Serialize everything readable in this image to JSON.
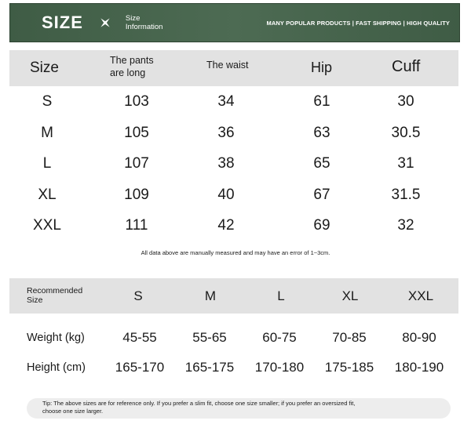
{
  "header": {
    "title": "SIZE",
    "info_line1": "Size",
    "info_line2": "Information",
    "tagline": "MANY POPULAR PRODUCTS | FAST SHIPPING | HIGH QUALITY",
    "icon": "sparkle-icon"
  },
  "measure_table": {
    "headers": {
      "size": "Size",
      "pants_line1": "The pants",
      "pants_line2": "are long",
      "waist": "The waist",
      "hip": "Hip",
      "cuff": "Cuff"
    },
    "rows": [
      [
        "S",
        "103",
        "34",
        "61",
        "30"
      ],
      [
        "M",
        "105",
        "36",
        "63",
        "30.5"
      ],
      [
        "L",
        "107",
        "38",
        "65",
        "31"
      ],
      [
        "XL",
        "109",
        "40",
        "67",
        "31.5"
      ],
      [
        "XXL",
        "111",
        "42",
        "69",
        "32"
      ]
    ]
  },
  "note": "All data above are manually measured and may have an error of 1~3cm.",
  "recommend_table": {
    "header_line1": "Recommended",
    "header_line2": "Size",
    "sizes": [
      "S",
      "M",
      "L",
      "XL",
      "XXL"
    ],
    "weight_label": "Weight (kg)",
    "weight": [
      "45-55",
      "55-65",
      "60-75",
      "70-85",
      "80-90"
    ],
    "height_label": "Height (cm)",
    "height": [
      "165-170",
      "165-175",
      "170-180",
      "175-185",
      "180-190"
    ]
  },
  "tip_line1": "Tip: The above sizes are for reference only. If you prefer a slim fit, choose one size smaller; if you prefer an oversized fit,",
  "tip_line2": "choose one size larger."
}
